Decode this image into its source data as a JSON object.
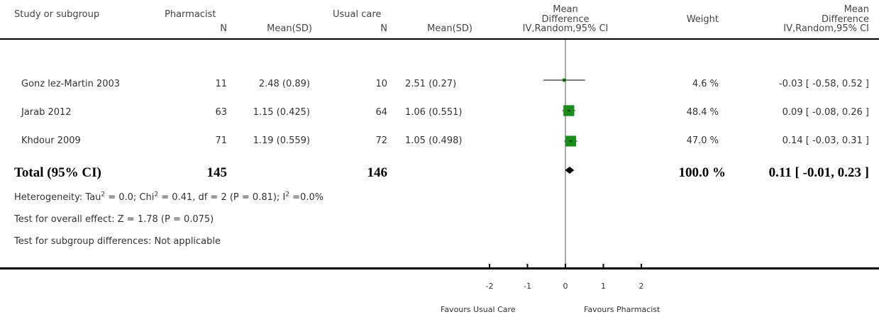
{
  "header": {
    "study_col": "Study or subgroup",
    "group1": "Pharmacist",
    "group2": "Usual care",
    "n_label1": "N",
    "mean_sd_label1": "Mean(SD)",
    "n_label2": "N",
    "mean_sd_label2": "Mean(SD)",
    "plot_title_line1": "Mean",
    "plot_title_line2": "Difference",
    "plot_method": "IV,Random,95% CI",
    "weight": "Weight",
    "effect_title_line1": "Mean",
    "effect_title_line2": "Difference",
    "effect_method": "IV,Random,95% CI"
  },
  "rows": [
    {
      "study": "Gonz  lez-Martin 2003",
      "n1": "11",
      "msd1": "2.48 (0.89)",
      "n2": "10",
      "msd2": "2.51 (0.27)",
      "weight": "4.6 %",
      "ci": "-0.03 [ -0.58, 0.52 ]"
    },
    {
      "study": "Jarab 2012",
      "n1": "63",
      "msd1": "1.15 (0.425)",
      "n2": "64",
      "msd2": "1.06 (0.551)",
      "weight": "48.4 %",
      "ci": "0.09 [ -0.08, 0.26 ]"
    },
    {
      "study": "Khdour 2009",
      "n1": "71",
      "msd1": "1.19 (0.559)",
      "n2": "72",
      "msd2": "1.05 (0.498)",
      "weight": "47.0 %",
      "ci": "0.14 [ -0.03, 0.31 ]"
    }
  ],
  "total": {
    "label": "Total (95% CI)",
    "n1": "145",
    "n2": "146",
    "weight": "100.0 %",
    "ci": "0.11 [ -0.01, 0.23 ]"
  },
  "footer": {
    "heterogeneity_a": "Heterogeneity: Tau",
    "heterogeneity_b": " = 0.0; Chi",
    "heterogeneity_c": " = 0.41, df = 2 (P = 0.81); I",
    "heterogeneity_d": " =0.0%",
    "sup2": "2",
    "overall_effect": "Test for overall effect: Z = 1.78 (P = 0.075)",
    "subgroup": "Test for subgroup differences: Not applicable"
  },
  "axis": {
    "favours_left": "Favours Usual Care",
    "favours_right": "Favours Pharmacist"
  },
  "chart_data": {
    "type": "forest",
    "xlim": [
      -2,
      2
    ],
    "ticks": [
      -2,
      -1,
      0,
      1,
      2
    ],
    "tick_labels": [
      "-2",
      "-1",
      "0",
      "1",
      "2"
    ],
    "studies": [
      {
        "name": "Gonz  lez-Martin 2003",
        "estimate": -0.03,
        "lower": -0.58,
        "upper": 0.52,
        "weight": 4.6
      },
      {
        "name": "Jarab 2012",
        "estimate": 0.09,
        "lower": -0.08,
        "upper": 0.26,
        "weight": 48.4
      },
      {
        "name": "Khdour 2009",
        "estimate": 0.14,
        "lower": -0.03,
        "upper": 0.31,
        "weight": 47.0
      }
    ],
    "pooled": {
      "estimate": 0.11,
      "lower": -0.01,
      "upper": 0.23
    },
    "marker_color": "#1a8c1a"
  }
}
